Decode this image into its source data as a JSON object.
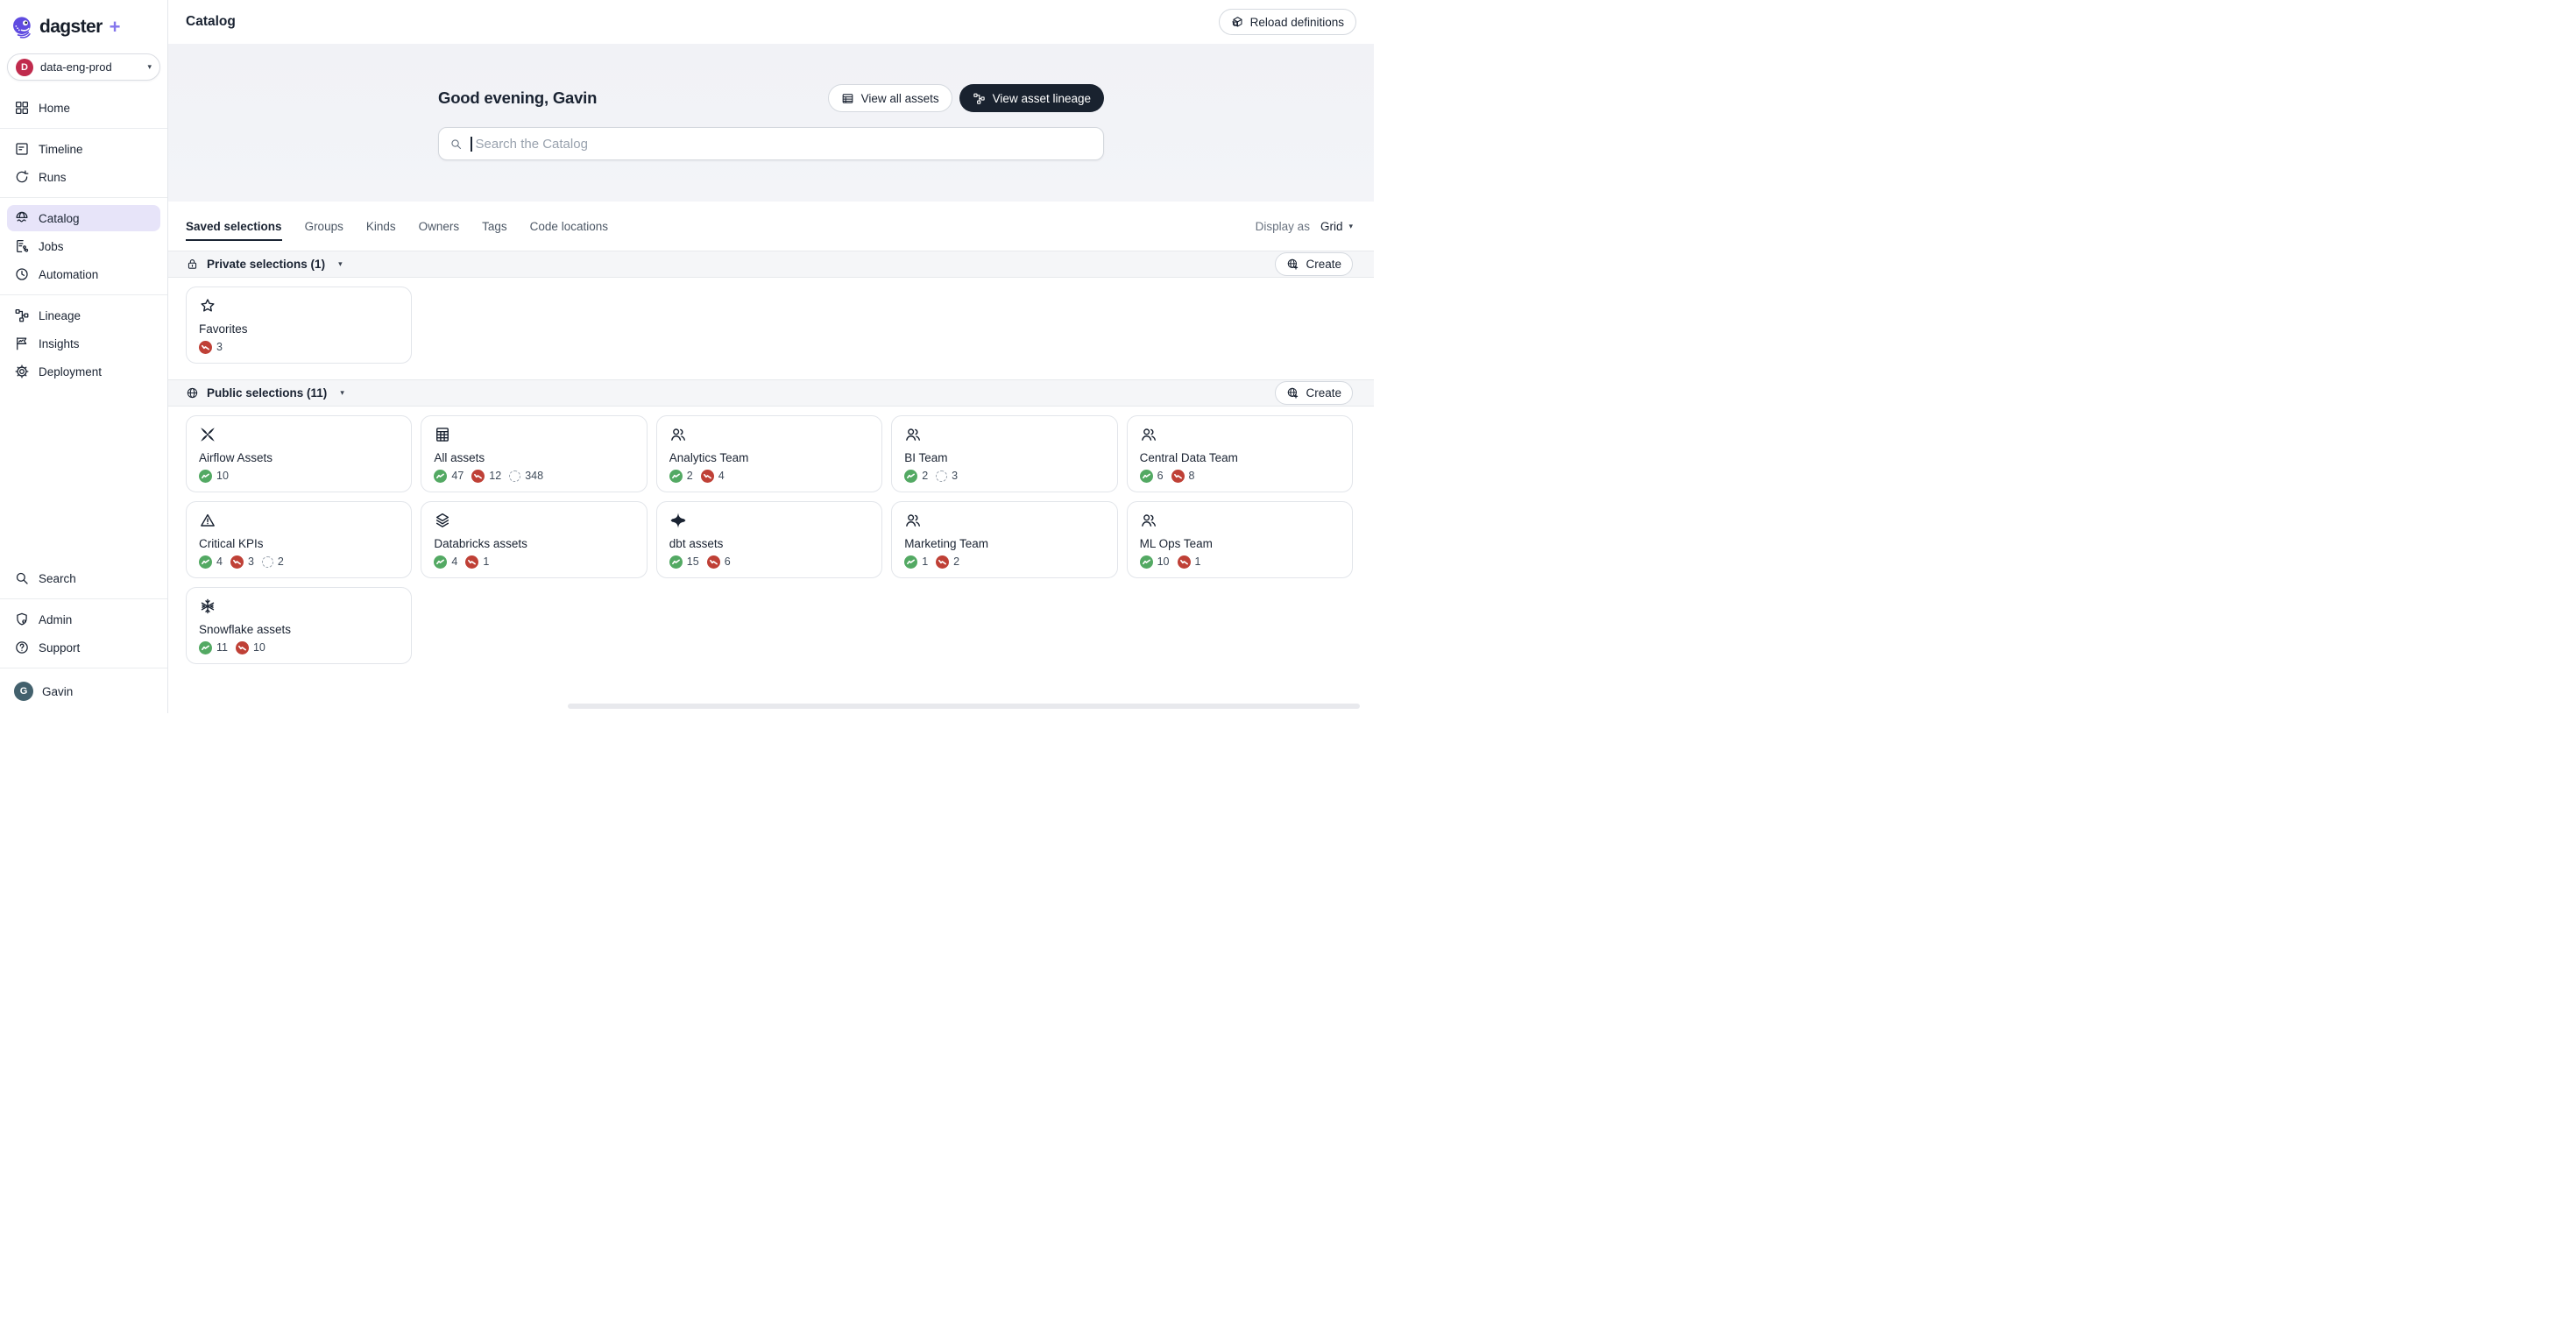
{
  "brand": {
    "name": "dagster",
    "plus": "+"
  },
  "workspace": {
    "avatar_letter": "D",
    "name": "data-eng-prod"
  },
  "sidebar": {
    "groups": [
      [
        {
          "label": "Home",
          "icon": "home-icon"
        }
      ],
      [
        {
          "label": "Timeline",
          "icon": "timeline-icon"
        },
        {
          "label": "Runs",
          "icon": "runs-icon"
        }
      ],
      [
        {
          "label": "Catalog",
          "icon": "catalog-icon",
          "active": true
        },
        {
          "label": "Jobs",
          "icon": "jobs-icon"
        },
        {
          "label": "Automation",
          "icon": "automation-icon"
        }
      ],
      [
        {
          "label": "Lineage",
          "icon": "lineage-icon"
        },
        {
          "label": "Insights",
          "icon": "insights-icon"
        },
        {
          "label": "Deployment",
          "icon": "deployment-icon"
        }
      ]
    ],
    "footer_groups": [
      [
        {
          "label": "Search",
          "icon": "search-icon"
        }
      ],
      [
        {
          "label": "Admin",
          "icon": "admin-icon"
        },
        {
          "label": "Support",
          "icon": "support-icon"
        }
      ]
    ],
    "user": {
      "avatar_letter": "G",
      "name": "Gavin"
    }
  },
  "topbar": {
    "title": "Catalog",
    "reload_label": "Reload definitions"
  },
  "hero": {
    "greeting": "Good evening, Gavin",
    "view_all_label": "View all assets",
    "view_lineage_label": "View asset lineage",
    "search_placeholder": "Search the Catalog"
  },
  "tabs": [
    {
      "label": "Saved selections",
      "active": true
    },
    {
      "label": "Groups"
    },
    {
      "label": "Kinds"
    },
    {
      "label": "Owners"
    },
    {
      "label": "Tags"
    },
    {
      "label": "Code locations"
    }
  ],
  "display_as": {
    "label": "Display as",
    "value": "Grid"
  },
  "sections": [
    {
      "title": "Private selections (1)",
      "icon": "lock-icon",
      "create_label": "Create",
      "cards": [
        {
          "name": "Favorites",
          "icon": "star-icon",
          "counts": [
            {
              "kind": "failed",
              "value": "3"
            }
          ]
        }
      ]
    },
    {
      "title": "Public selections (11)",
      "icon": "globe-icon",
      "create_label": "Create",
      "cards": [
        {
          "name": "Airflow Assets",
          "icon": "airflow-icon",
          "counts": [
            {
              "kind": "success",
              "value": "10"
            }
          ]
        },
        {
          "name": "All assets",
          "icon": "table-icon",
          "counts": [
            {
              "kind": "success",
              "value": "47"
            },
            {
              "kind": "failed",
              "value": "12"
            },
            {
              "kind": "never",
              "value": "348"
            }
          ]
        },
        {
          "name": "Analytics Team",
          "icon": "team-icon",
          "counts": [
            {
              "kind": "success",
              "value": "2"
            },
            {
              "kind": "failed",
              "value": "4"
            }
          ]
        },
        {
          "name": "BI Team",
          "icon": "team-icon",
          "counts": [
            {
              "kind": "success",
              "value": "2"
            },
            {
              "kind": "never",
              "value": "3"
            }
          ]
        },
        {
          "name": "Central Data Team",
          "icon": "team-icon",
          "counts": [
            {
              "kind": "success",
              "value": "6"
            },
            {
              "kind": "failed",
              "value": "8"
            }
          ]
        },
        {
          "name": "Critical KPIs",
          "icon": "warning-icon",
          "counts": [
            {
              "kind": "success",
              "value": "4"
            },
            {
              "kind": "failed",
              "value": "3"
            },
            {
              "kind": "never",
              "value": "2"
            }
          ]
        },
        {
          "name": "Databricks assets",
          "icon": "layers-icon",
          "counts": [
            {
              "kind": "success",
              "value": "4"
            },
            {
              "kind": "failed",
              "value": "1"
            }
          ]
        },
        {
          "name": "dbt assets",
          "icon": "dbt-icon",
          "counts": [
            {
              "kind": "success",
              "value": "15"
            },
            {
              "kind": "failed",
              "value": "6"
            }
          ]
        },
        {
          "name": "Marketing Team",
          "icon": "team-icon",
          "counts": [
            {
              "kind": "success",
              "value": "1"
            },
            {
              "kind": "failed",
              "value": "2"
            }
          ]
        },
        {
          "name": "ML Ops Team",
          "icon": "team-icon",
          "counts": [
            {
              "kind": "success",
              "value": "10"
            },
            {
              "kind": "failed",
              "value": "1"
            }
          ]
        },
        {
          "name": "Snowflake assets",
          "icon": "snowflake-icon",
          "counts": [
            {
              "kind": "success",
              "value": "11"
            },
            {
              "kind": "failed",
              "value": "10"
            }
          ]
        }
      ]
    }
  ],
  "colors": {
    "accent_purple": "#5F4BE0",
    "nav_active_bg": "#E7E4F9",
    "success_green": "#53A963",
    "failed_red": "#BF4036",
    "workspace_avatar": "#C02B4D",
    "user_avatar": "#43616D",
    "dark_button": "#19222F"
  }
}
